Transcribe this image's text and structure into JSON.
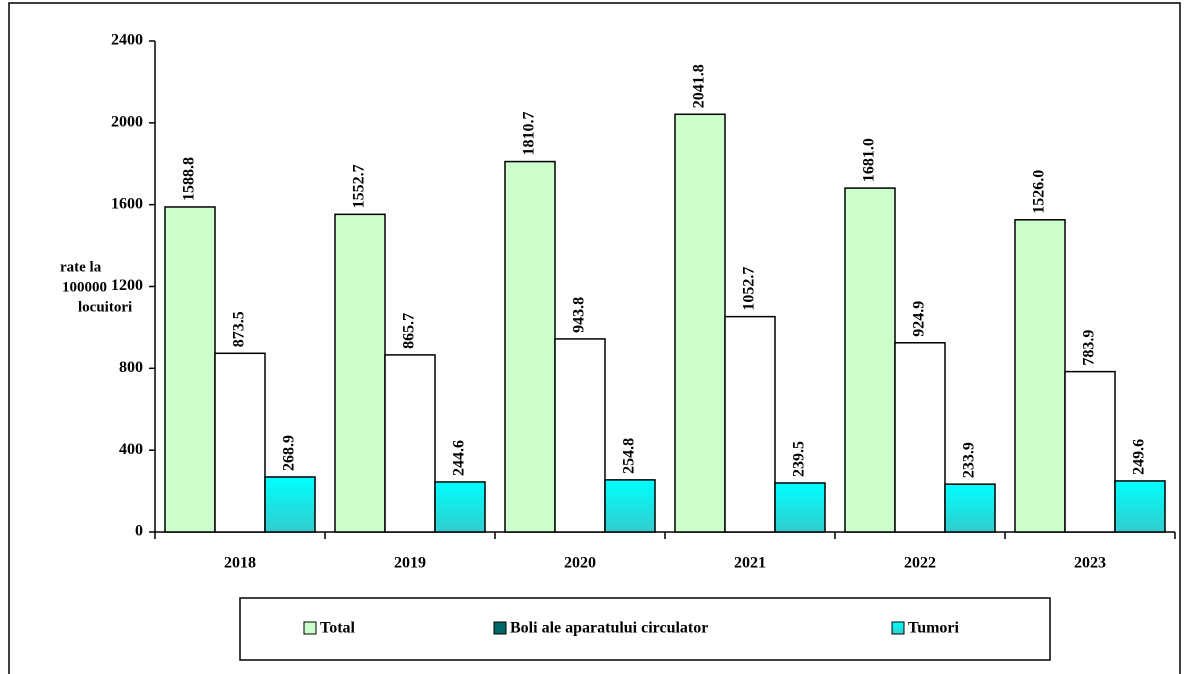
{
  "chart_data": {
    "type": "bar",
    "ylabel": [
      "rate la",
      "100000",
      "locuitori"
    ],
    "categories": [
      "2018",
      "2019",
      "2020",
      "2021",
      "2022",
      "2023"
    ],
    "series": [
      {
        "name": "Total",
        "color": "#ccffcc",
        "values": [
          1588.8,
          1552.7,
          1810.7,
          2041.8,
          1681.0,
          1526.0
        ],
        "value_labels": [
          "1588.8",
          "1552.7",
          "1810.7",
          "2041.8",
          "1681.0",
          "1526.0"
        ]
      },
      {
        "name": "Boli ale aparatului circulator",
        "color": "#ffffff",
        "legend_color": "#006666",
        "values": [
          873.5,
          865.7,
          943.8,
          1052.7,
          924.9,
          783.9
        ],
        "value_labels": [
          "873.5",
          "865.7",
          "943.8",
          "1052.7",
          "924.9",
          "783.9"
        ]
      },
      {
        "name": "Tumori",
        "color": "#00e5e5",
        "values": [
          268.9,
          244.6,
          254.8,
          239.5,
          233.9,
          249.6
        ],
        "value_labels": [
          "268.9",
          "244.6",
          "254.8",
          "239.5",
          "233.9",
          "249.6"
        ]
      }
    ],
    "ylim": [
      0,
      2400
    ],
    "yticks": [
      0,
      400,
      800,
      1200,
      1600,
      2000,
      2400
    ],
    "legend": "bottom"
  }
}
